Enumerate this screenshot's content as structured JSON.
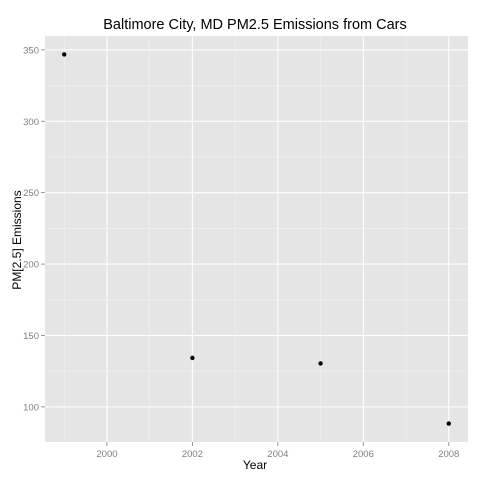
{
  "chart_data": {
    "type": "scatter",
    "title": "Baltimore City, MD PM2.5 Emissions from Cars",
    "xlabel": "Year",
    "ylabel": "PM[2.5] Emissions",
    "x": [
      1999,
      2002,
      2005,
      2008
    ],
    "y": [
      346.8,
      134.3,
      130.4,
      88.3
    ],
    "xlim": [
      1998.55,
      2008.45
    ],
    "ylim": [
      75.4,
      359.7
    ],
    "xticks": [
      2000,
      2002,
      2004,
      2006,
      2008
    ],
    "yticks": [
      100,
      150,
      200,
      250,
      300,
      350
    ],
    "grid": true,
    "legend": "none",
    "colors": {
      "panel": "#e5e5e5",
      "grid_major": "#ffffff",
      "grid_minor": "#f2f2f2",
      "point": "#000000",
      "tick_label": "#7f7f7f",
      "tick_mark": "#7f7f7f"
    }
  }
}
